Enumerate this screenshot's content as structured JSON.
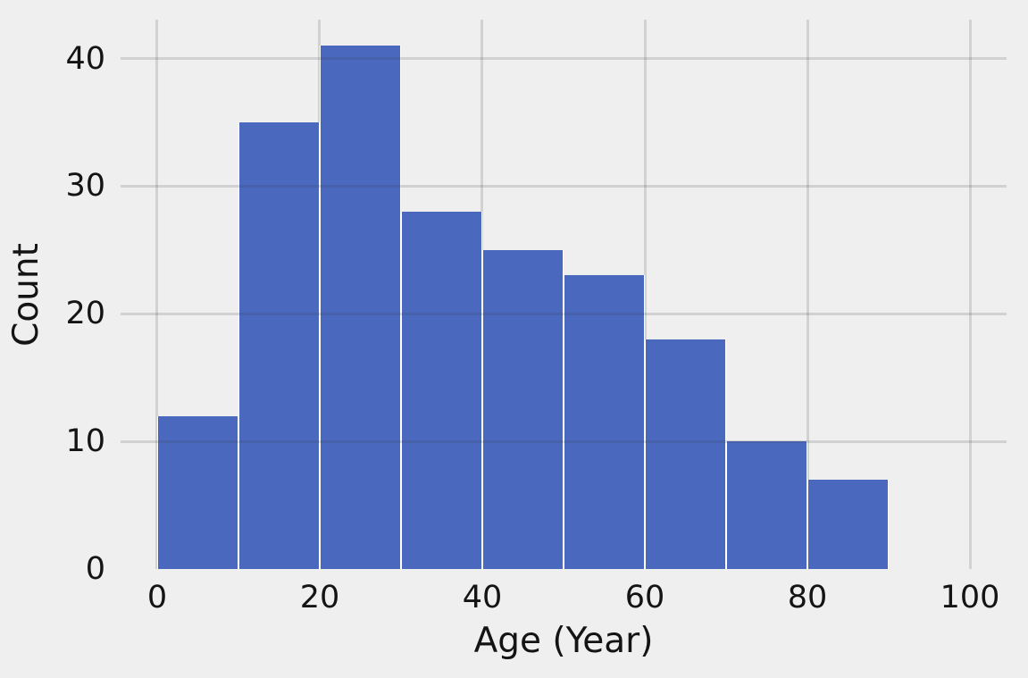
{
  "chart_data": {
    "type": "histogram",
    "title": "",
    "xlabel": "Age (Year)",
    "ylabel": "Count",
    "bin_edges": [
      0,
      10,
      20,
      30,
      40,
      50,
      60,
      70,
      80,
      90
    ],
    "counts": [
      12,
      35,
      41,
      28,
      25,
      23,
      18,
      10,
      7
    ],
    "x_ticks": [
      0,
      20,
      40,
      60,
      80,
      100
    ],
    "y_ticks": [
      0,
      10,
      20,
      30,
      40
    ],
    "xlim": [
      -4.5,
      104.5
    ],
    "ylim": [
      0,
      43.05
    ],
    "grid": true,
    "legend": false,
    "bar_color": "#4a69be",
    "bar_edge_color": "#ffffff",
    "background_color": "#efefef",
    "gridline_color": "#d2d2d2",
    "gridline_overlay_rgba": "rgba(55,55,70,0.16)",
    "text_color": "#141414"
  }
}
